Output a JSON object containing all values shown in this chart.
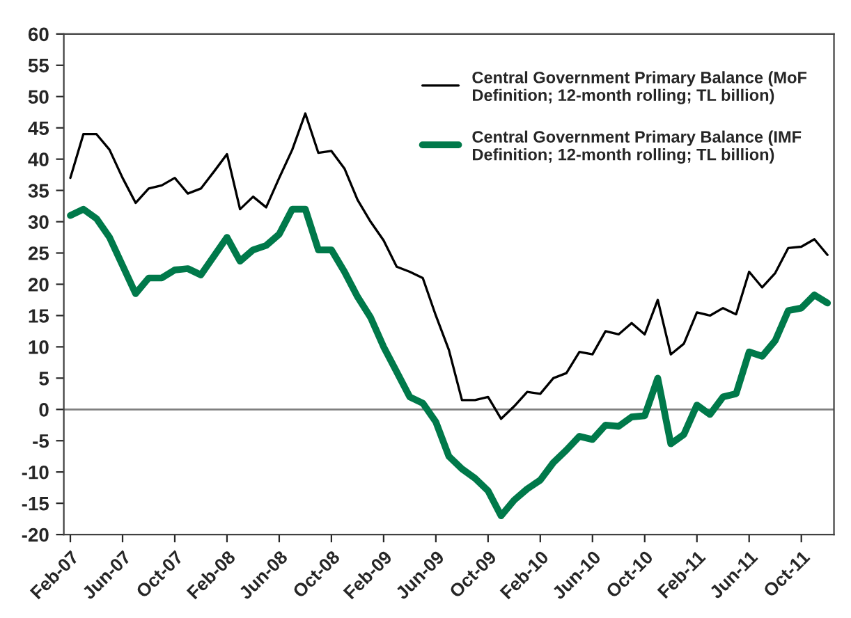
{
  "chart_data": {
    "type": "line",
    "categories": [
      "Feb-07",
      null,
      null,
      null,
      "Jun-07",
      null,
      null,
      null,
      "Oct-07",
      null,
      null,
      null,
      "Feb-08",
      null,
      null,
      null,
      "Jun-08",
      null,
      null,
      null,
      "Oct-08",
      null,
      null,
      null,
      "Feb-09",
      null,
      null,
      null,
      "Jun-09",
      null,
      null,
      null,
      "Oct-09",
      null,
      null,
      null,
      "Feb-10",
      null,
      null,
      null,
      "Jun-10",
      null,
      null,
      null,
      "Oct-10",
      null,
      null,
      null,
      "Feb-11",
      null,
      null,
      null,
      "Jun-11",
      null,
      null,
      null,
      "Oct-11",
      null,
      null
    ],
    "series": [
      {
        "name": "Central Government Primary Balance (MoF Definition; 12-month rolling; TL billion)",
        "color": "#000000",
        "values": [
          37,
          44,
          44,
          41.5,
          37,
          33,
          35.3,
          35.8,
          37,
          34.5,
          35.3,
          38,
          40.8,
          32,
          34,
          32.3,
          37,
          41.5,
          47.3,
          41,
          41.3,
          38.5,
          33.5,
          30,
          27,
          22.8,
          22,
          21,
          15,
          9.5,
          1.5,
          1.5,
          2,
          -1.5,
          0.5,
          2.8,
          2.5,
          5,
          5.8,
          9.2,
          8.8,
          12.5,
          12,
          13.8,
          12,
          17.5,
          8.8,
          10.5,
          15.5,
          15,
          16.2,
          15.2,
          22,
          19.5,
          21.8,
          25.8,
          26,
          27.2,
          24.7
        ]
      },
      {
        "name": "Central Government Primary Balance (IMF Definition; 12-month rolling; TL billion)",
        "color": "#00794a",
        "values": [
          31,
          32,
          30.5,
          27.5,
          23,
          18.5,
          21,
          21,
          22.3,
          22.5,
          21.5,
          24.5,
          27.5,
          23.7,
          25.5,
          26.2,
          28,
          32,
          32,
          25.5,
          25.5,
          22,
          18,
          14.7,
          10,
          6,
          2,
          1,
          -2,
          -7.5,
          -9.5,
          -11,
          -13,
          -17,
          -14.5,
          -12.7,
          -11.3,
          -8.5,
          -6.5,
          -4.3,
          -4.8,
          -2.5,
          -2.7,
          -1.2,
          -1,
          5,
          -5.5,
          -4,
          0.7,
          -0.8,
          2,
          2.5,
          9.2,
          8.5,
          11,
          15.8,
          16.2,
          18.3,
          17
        ]
      }
    ],
    "ylim": [
      -20,
      60
    ],
    "yticks": [
      -20,
      -15,
      -10,
      -5,
      0,
      5,
      10,
      15,
      20,
      25,
      30,
      35,
      40,
      45,
      50,
      55,
      60
    ],
    "ref_lines": [
      {
        "axis": "y",
        "value": 0,
        "color": "#808080"
      }
    ],
    "grid": false,
    "legend": "top right",
    "marker": "none",
    "line_style": "solid"
  }
}
